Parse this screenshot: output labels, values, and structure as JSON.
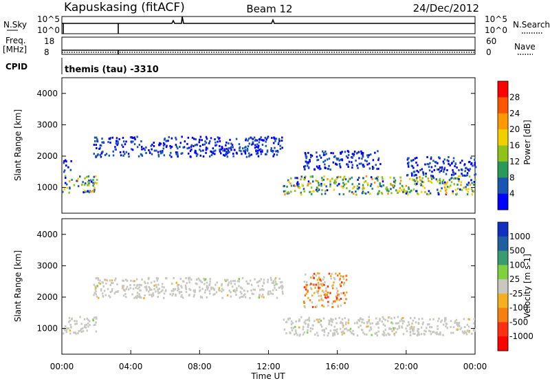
{
  "header": {
    "station": "Kapuskasing (fitACF)",
    "beam": "Beam 12",
    "date": "24/Dec/2012"
  },
  "panels": {
    "nsky_label": "N.Sky",
    "nsky_ticks": [
      "10^5",
      "10^0"
    ],
    "nsearch_label": "N.Search",
    "nsearch_ticks": [
      "10^5",
      "10^0"
    ],
    "freq_label": "Freq.",
    "freq_unit": "[MHz]",
    "freq_ticks": [
      "18",
      "8"
    ],
    "nave_label": "Nave",
    "nave_ticks": [
      "60",
      "0"
    ],
    "cpid_label": "CPID",
    "cpid_value": "themis (tau) -3310"
  },
  "chart_data": [
    {
      "type": "heatmap",
      "name": "power",
      "ylabel": "Slant Range [km]",
      "yticks": [
        "4000",
        "3000",
        "2000",
        "1000"
      ],
      "ylim": [
        180,
        4500
      ],
      "xlim_hours": [
        0,
        24
      ],
      "colorbar_label": "Power [dB]",
      "colorbar_ticks": [
        "28",
        "24",
        "20",
        "16",
        "12",
        "8",
        "4"
      ],
      "colorbar_colors": [
        "#ff0000",
        "#ff5500",
        "#ff9900",
        "#f0d000",
        "#8fc21a",
        "#2a9a5a",
        "#1a55b0",
        "#0000ff"
      ],
      "echo_regions": [
        {
          "t0": 0.0,
          "t1": 2.0,
          "r0": 850,
          "r1": 1400,
          "level": 4
        },
        {
          "t0": 0.0,
          "t1": 0.5,
          "r0": 1500,
          "r1": 1900,
          "level": 1
        },
        {
          "t0": 1.8,
          "t1": 12.8,
          "r0": 2000,
          "r1": 2650,
          "level": 1
        },
        {
          "t0": 12.8,
          "t1": 24.0,
          "r0": 800,
          "r1": 1400,
          "level": 4
        },
        {
          "t0": 14.0,
          "t1": 18.5,
          "r0": 1600,
          "r1": 2200,
          "level": 1
        },
        {
          "t0": 20.0,
          "t1": 24.0,
          "r0": 1400,
          "r1": 2000,
          "level": 1
        }
      ]
    },
    {
      "type": "heatmap",
      "name": "velocity",
      "ylabel": "Slant Range [km]",
      "yticks": [
        "4000",
        "3000",
        "2000",
        "1000"
      ],
      "ylim": [
        180,
        4500
      ],
      "xlim_hours": [
        0,
        24
      ],
      "xticks": [
        "00:00",
        "04:00",
        "08:00",
        "12:00",
        "16:00",
        "20:00",
        "00:00"
      ],
      "xlabel": "Time UT",
      "colorbar_label": "Velocity [m s-1]",
      "colorbar_ticks": [
        "1000",
        "500",
        "100",
        "25",
        "-25",
        "-100",
        "-500",
        "-1000"
      ],
      "colorbar_colors": [
        "#1030c0",
        "#1f5fa0",
        "#3a9a70",
        "#80d040",
        "#c8c8c0",
        "#f4b020",
        "#f57f10",
        "#ff3010",
        "#ff0000"
      ],
      "echo_regions": [
        {
          "t0": 0.0,
          "t1": 2.0,
          "r0": 850,
          "r1": 1400,
          "level": "ground"
        },
        {
          "t0": 1.8,
          "t1": 12.8,
          "r0": 2000,
          "r1": 2650,
          "level": "ground"
        },
        {
          "t0": 12.8,
          "t1": 24.0,
          "r0": 800,
          "r1": 1400,
          "level": "ground"
        },
        {
          "t0": 14.0,
          "t1": 16.5,
          "r0": 1700,
          "r1": 2800,
          "level": "negative"
        }
      ]
    }
  ]
}
